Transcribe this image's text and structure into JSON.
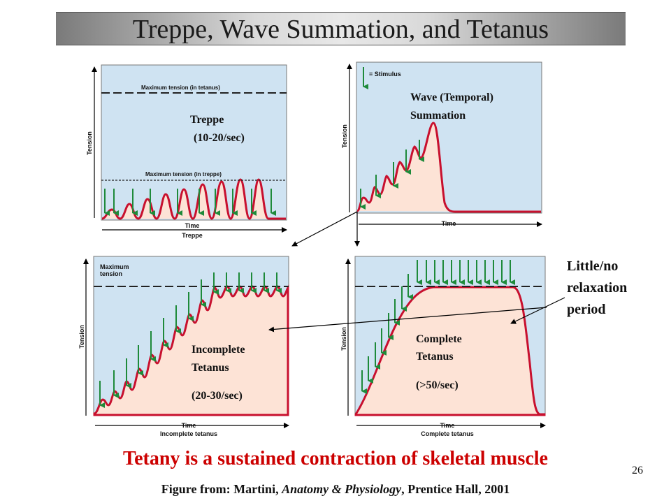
{
  "title": "Treppe, Wave Summation, and Tetanus",
  "axis": {
    "tension": "Tension",
    "time": "Time"
  },
  "panels": {
    "treppe": {
      "label_line1": "Treppe",
      "label_line2": "(10-20/sec)",
      "max_tetanus_label": "Maximum tension (in tetanus)",
      "max_treppe_label": "Maximum tension (in treppe)",
      "caption": "Treppe"
    },
    "wave": {
      "legend": "= Stimulus",
      "label_line1": "Wave (Temporal)",
      "label_line2": "Summation"
    },
    "incomplete": {
      "max_line1": "Maximum",
      "max_line2": "tension",
      "label_line1": "Incomplete",
      "label_line2": "Tetanus",
      "rate": "(20-30/sec)",
      "caption": "Incomplete tetanus"
    },
    "complete": {
      "label_line1": "Complete",
      "label_line2": "Tetanus",
      "rate": "(>50/sec)",
      "caption": "Complete tetanus"
    }
  },
  "side_note": {
    "line1": "Little/no",
    "line2": "relaxation",
    "line3": "period"
  },
  "tetany": "Tetany is a sustained contraction of skeletal muscle",
  "figure_from": {
    "prefix": "Figure from: Martini, ",
    "book": "Anatomy & Physiology",
    "suffix": ", Prentice Hall, 2001"
  },
  "page_number": "26",
  "colors": {
    "panel_bg": "#cfe3f2",
    "fill": "#fde3d6",
    "curve": "#c8102e",
    "stimulus": "#1e8a3a"
  }
}
